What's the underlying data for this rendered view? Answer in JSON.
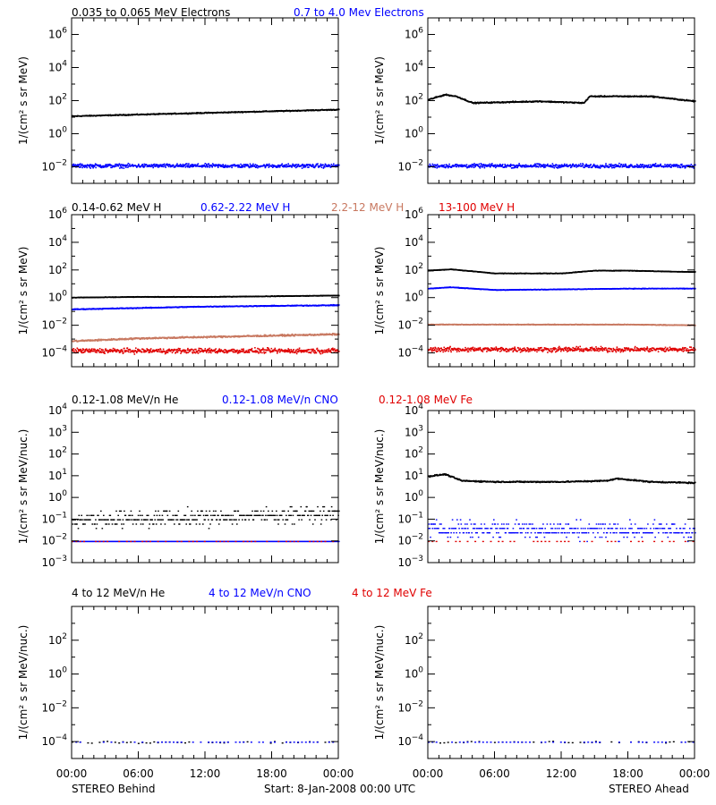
{
  "colors": {
    "black": "#000000",
    "blue": "#0000ff",
    "tan": "#c87860",
    "red": "#e00000"
  },
  "rows": [
    {
      "legend": [
        {
          "text": "0.035 to 0.065 MeV Electrons",
          "color": "#000000"
        },
        {
          "text": "0.7 to 4.0 Mev Electrons",
          "color": "#0000ff"
        }
      ]
    },
    {
      "legend": [
        {
          "text": "0.14-0.62 MeV H",
          "color": "#000000"
        },
        {
          "text": "0.62-2.22 MeV H",
          "color": "#0000ff"
        },
        {
          "text": "2.2-12 MeV H",
          "color": "#c87860"
        },
        {
          "text": "13-100 MeV H",
          "color": "#e00000"
        }
      ]
    },
    {
      "legend": [
        {
          "text": "0.12-1.08 MeV/n He",
          "color": "#000000"
        },
        {
          "text": "0.12-1.08 MeV/n CNO",
          "color": "#0000ff"
        },
        {
          "text": "0.12-1.08 MeV Fe",
          "color": "#e00000"
        }
      ]
    },
    {
      "legend": [
        {
          "text": "4 to 12 MeV/n He",
          "color": "#000000"
        },
        {
          "text": "4 to 12 MeV/n CNO",
          "color": "#0000ff"
        },
        {
          "text": "4 to 12 MeV Fe",
          "color": "#e00000"
        }
      ]
    }
  ],
  "footer": {
    "left": "STEREO Behind",
    "center": "Start:  8-Jan-2008 00:00 UTC",
    "right": "STEREO Ahead"
  },
  "chart_data": [
    {
      "type": "scatter",
      "panel": "row1-behind",
      "log_y": true,
      "ylabel": "1/(cm² s sr MeV)",
      "ylim_exp": [
        -3,
        7
      ],
      "ytick_exps": [
        -2,
        0,
        2,
        4,
        6
      ],
      "xlim": [
        0,
        24
      ],
      "xticks": [
        "00:00",
        "06:00",
        "12:00",
        "18:00",
        "00:00"
      ],
      "series": [
        {
          "color": "#000000",
          "x": [
            0,
            6,
            12,
            18,
            24
          ],
          "y_exp": [
            1.1,
            1.2,
            1.3,
            1.4,
            1.5
          ],
          "noise": 0.05
        },
        {
          "color": "#0000ff",
          "x": [
            0,
            6,
            12,
            18,
            24
          ],
          "y_exp": [
            -1.9,
            -1.9,
            -1.9,
            -1.9,
            -1.9
          ],
          "noise": 0.2
        }
      ]
    },
    {
      "type": "scatter",
      "panel": "row1-ahead",
      "log_y": true,
      "ylabel": "1/(cm² s sr MeV)",
      "ylim_exp": [
        -3,
        7
      ],
      "ytick_exps": [
        -2,
        0,
        2,
        4,
        6
      ],
      "xlim": [
        0,
        24
      ],
      "xticks": [
        "00:00",
        "06:00",
        "12:00",
        "18:00",
        "00:00"
      ],
      "series": [
        {
          "color": "#000000",
          "x": [
            0,
            1.5,
            2.5,
            4,
            10,
            14,
            14.5,
            20,
            24
          ],
          "y_exp": [
            2.1,
            2.4,
            2.3,
            1.9,
            2.0,
            1.9,
            2.3,
            2.3,
            2.0
          ],
          "noise": 0.06
        },
        {
          "color": "#0000ff",
          "x": [
            0,
            6,
            12,
            18,
            24
          ],
          "y_exp": [
            -1.9,
            -1.9,
            -1.9,
            -1.9,
            -1.9
          ],
          "noise": 0.2
        }
      ]
    },
    {
      "type": "scatter",
      "panel": "row2-behind",
      "log_y": true,
      "ylabel": "1/(cm² s sr MeV)",
      "ylim_exp": [
        -5,
        6
      ],
      "ytick_exps": [
        -4,
        -2,
        0,
        2,
        4,
        6
      ],
      "xlim": [
        0,
        24
      ],
      "xticks": [
        "00:00",
        "06:00",
        "12:00",
        "18:00",
        "00:00"
      ],
      "series": [
        {
          "color": "#000000",
          "x": [
            0,
            6,
            12,
            18,
            24
          ],
          "y_exp": [
            0.05,
            0.1,
            0.1,
            0.15,
            0.2
          ],
          "noise": 0.03
        },
        {
          "color": "#0000ff",
          "x": [
            0,
            6,
            12,
            18,
            24
          ],
          "y_exp": [
            -0.8,
            -0.7,
            -0.6,
            -0.55,
            -0.5
          ],
          "noise": 0.05
        },
        {
          "color": "#c87860",
          "x": [
            0,
            6,
            12,
            18,
            24
          ],
          "y_exp": [
            -3.1,
            -2.9,
            -2.8,
            -2.7,
            -2.6
          ],
          "noise": 0.1
        },
        {
          "color": "#e00000",
          "x": [
            0,
            6,
            12,
            18,
            24
          ],
          "y_exp": [
            -3.8,
            -3.8,
            -3.8,
            -3.8,
            -3.8
          ],
          "noise": 0.3
        }
      ]
    },
    {
      "type": "scatter",
      "panel": "row2-ahead",
      "log_y": true,
      "ylabel": "1/(cm² s sr MeV)",
      "ylim_exp": [
        -5,
        6
      ],
      "ytick_exps": [
        -4,
        -2,
        0,
        2,
        4,
        6
      ],
      "xlim": [
        0,
        24
      ],
      "xticks": [
        "00:00",
        "06:00",
        "12:00",
        "18:00",
        "00:00"
      ],
      "series": [
        {
          "color": "#000000",
          "x": [
            0,
            2,
            6,
            12,
            15,
            18,
            24
          ],
          "y_exp": [
            2.0,
            2.1,
            1.8,
            1.8,
            2.0,
            2.0,
            1.9
          ],
          "noise": 0.03
        },
        {
          "color": "#0000ff",
          "x": [
            0,
            2,
            6,
            12,
            18,
            24
          ],
          "y_exp": [
            0.7,
            0.8,
            0.6,
            0.65,
            0.7,
            0.7
          ],
          "noise": 0.03
        },
        {
          "color": "#c87860",
          "x": [
            0,
            6,
            12,
            18,
            24
          ],
          "y_exp": [
            -1.9,
            -1.9,
            -1.9,
            -1.9,
            -1.95
          ],
          "noise": 0.04
        },
        {
          "color": "#e00000",
          "x": [
            0,
            6,
            12,
            18,
            24
          ],
          "y_exp": [
            -3.7,
            -3.7,
            -3.7,
            -3.7,
            -3.7
          ],
          "noise": 0.3
        }
      ]
    },
    {
      "type": "scatter",
      "panel": "row3-behind",
      "log_y": true,
      "ylabel": "1/(cm² s sr MeV/nuc.)",
      "ylim_exp": [
        -3,
        4
      ],
      "ytick_exps": [
        -3,
        -2,
        -1,
        0,
        1,
        2,
        3,
        4
      ],
      "xlim": [
        0,
        24
      ],
      "xticks": [
        "00:00",
        "06:00",
        "12:00",
        "18:00",
        "00:00"
      ],
      "series": [
        {
          "color": "#000000",
          "x": [
            0,
            6,
            12,
            18,
            24
          ],
          "y_exp": [
            -1.0,
            -0.95,
            -0.9,
            -0.8,
            -0.7
          ],
          "noise": 0.3,
          "sparse": true
        },
        {
          "color": "#0000ff",
          "x": [
            0,
            24
          ],
          "y_exp": [
            -2.0,
            -2.0
          ],
          "noise": 0.0,
          "sparse": true
        },
        {
          "color": "#e00000",
          "x": [
            0,
            24
          ],
          "y_exp": [
            -2.0,
            -2.0
          ],
          "noise": 0.0,
          "sparse": true,
          "rare": true
        }
      ]
    },
    {
      "type": "scatter",
      "panel": "row3-ahead",
      "log_y": true,
      "ylabel": "1/(cm² s sr MeV/nuc.)",
      "ylim_exp": [
        -3,
        4
      ],
      "ytick_exps": [
        -3,
        -2,
        -1,
        0,
        1,
        2,
        3,
        4
      ],
      "xlim": [
        0,
        24
      ],
      "xticks": [
        "00:00",
        "06:00",
        "12:00",
        "18:00",
        "00:00"
      ],
      "series": [
        {
          "color": "#000000",
          "x": [
            0,
            1.5,
            3,
            6,
            12,
            16,
            17,
            20,
            24
          ],
          "y_exp": [
            1.0,
            1.1,
            0.8,
            0.75,
            0.75,
            0.8,
            0.9,
            0.75,
            0.7
          ],
          "noise": 0.05
        },
        {
          "color": "#0000ff",
          "x": [
            0,
            24
          ],
          "y_exp": [
            -1.4,
            -1.5
          ],
          "noise": 0.35,
          "sparse": true
        },
        {
          "color": "#e00000",
          "x": [
            0,
            24
          ],
          "y_exp": [
            -2.0,
            -2.0
          ],
          "noise": 0.0,
          "sparse": true,
          "rare": true
        }
      ]
    },
    {
      "type": "scatter",
      "panel": "row4-behind",
      "log_y": true,
      "ylabel": "1/(cm² s sr MeV/nuc.)",
      "ylim_exp": [
        -5,
        4
      ],
      "ytick_exps": [
        -4,
        -2,
        0,
        2
      ],
      "xlim": [
        0,
        24
      ],
      "xticks": [
        "00:00",
        "06:00",
        "12:00",
        "18:00",
        "00:00"
      ],
      "series": [
        {
          "color": "#000000",
          "x": [
            0,
            24
          ],
          "y_exp": [
            -4.0,
            -4.0
          ],
          "noise": 0.05,
          "sparse": true,
          "rare": true
        },
        {
          "color": "#0000ff",
          "x": [
            0,
            24
          ],
          "y_exp": [
            -4.0,
            -4.0
          ],
          "noise": 0.0,
          "sparse": true,
          "rare": true
        }
      ]
    },
    {
      "type": "scatter",
      "panel": "row4-ahead",
      "log_y": true,
      "ylabel": "1/(cm² s sr MeV/nuc.)",
      "ylim_exp": [
        -5,
        4
      ],
      "ytick_exps": [
        -4,
        -2,
        0,
        2
      ],
      "xlim": [
        0,
        24
      ],
      "xticks": [
        "00:00",
        "06:00",
        "12:00",
        "18:00",
        "00:00"
      ],
      "series": [
        {
          "color": "#000000",
          "x": [
            0,
            24
          ],
          "y_exp": [
            -4.0,
            -4.0
          ],
          "noise": 0.05,
          "sparse": true,
          "rare": true
        },
        {
          "color": "#0000ff",
          "x": [
            0,
            24
          ],
          "y_exp": [
            -4.0,
            -4.0
          ],
          "noise": 0.0,
          "sparse": true,
          "rare": true
        }
      ]
    }
  ]
}
